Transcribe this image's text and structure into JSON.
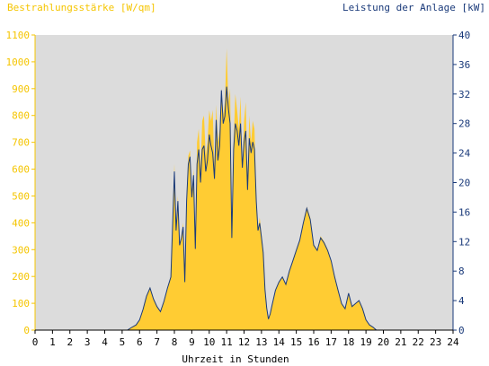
{
  "chart_data": {
    "type": "area",
    "title_left": "Bestrahlungsstärke [W/qm]",
    "title_right": "Leistung der Anlage [kW]",
    "xlabel": "Uhrzeit in Stunden",
    "x_ticks": [
      "0",
      "1",
      "2",
      "3",
      "4",
      "5",
      "6",
      "7",
      "8",
      "9",
      "10",
      "11",
      "12",
      "13",
      "14",
      "15",
      "16",
      "17",
      "18",
      "19",
      "20",
      "21",
      "22",
      "23",
      "24"
    ],
    "y_left_ticks": [
      "0",
      "100",
      "200",
      "300",
      "400",
      "500",
      "600",
      "700",
      "800",
      "900",
      "1000",
      "1100"
    ],
    "y_right_ticks": [
      "0",
      "4",
      "8",
      "12",
      "16",
      "20",
      "24",
      "28",
      "32",
      "36",
      "40"
    ],
    "xlim": [
      0,
      24
    ],
    "ylim_left": [
      0,
      1100
    ],
    "ylim_right": [
      0,
      40
    ],
    "grid": false,
    "colors": {
      "plot_background": "#dcdcdc",
      "irradiance_fill": "#ffcc33",
      "power_line": "#1a3a7a",
      "left_axis_text": "#f5c500",
      "right_axis_text": "#1a3a7a"
    },
    "series": [
      {
        "unit": "W/qm",
        "axis": "left",
        "style": "filled-area",
        "x": [
          5.3,
          5.5,
          5.8,
          6.0,
          6.2,
          6.4,
          6.6,
          6.8,
          7.0,
          7.2,
          7.4,
          7.6,
          7.8,
          8.0,
          8.1,
          8.2,
          8.3,
          8.4,
          8.5,
          8.6,
          8.7,
          8.8,
          8.9,
          9.0,
          9.1,
          9.2,
          9.3,
          9.4,
          9.5,
          9.6,
          9.7,
          9.8,
          9.9,
          10.0,
          10.1,
          10.2,
          10.3,
          10.4,
          10.5,
          10.6,
          10.7,
          10.8,
          10.9,
          11.0,
          11.1,
          11.2,
          11.3,
          11.4,
          11.5,
          11.6,
          11.7,
          11.8,
          11.9,
          12.0,
          12.1,
          12.2,
          12.3,
          12.4,
          12.5,
          12.6,
          12.7,
          12.8,
          12.9,
          13.0,
          13.1,
          13.2,
          13.3,
          13.4,
          13.5,
          13.6,
          13.8,
          14.0,
          14.2,
          14.4,
          14.6,
          14.8,
          15.0,
          15.2,
          15.4,
          15.6,
          15.8,
          16.0,
          16.2,
          16.4,
          16.6,
          16.8,
          17.0,
          17.2,
          17.4,
          17.6,
          17.8,
          18.0,
          18.2,
          18.4,
          18.6,
          18.8,
          19.0,
          19.2,
          19.4,
          19.6,
          19.8,
          20.0,
          20.2
        ],
        "values": [
          0,
          10,
          20,
          40,
          80,
          130,
          160,
          120,
          90,
          70,
          110,
          160,
          200,
          620,
          380,
          500,
          320,
          350,
          400,
          180,
          500,
          650,
          670,
          500,
          600,
          300,
          700,
          750,
          600,
          780,
          800,
          650,
          700,
          820,
          780,
          820,
          600,
          840,
          700,
          750,
          900,
          800,
          850,
          1050,
          850,
          900,
          380,
          700,
          880,
          820,
          750,
          870,
          600,
          780,
          850,
          560,
          800,
          700,
          780,
          750,
          500,
          380,
          420,
          360,
          300,
          150,
          80,
          40,
          60,
          90,
          150,
          180,
          200,
          170,
          220,
          260,
          300,
          340,
          400,
          460,
          420,
          320,
          300,
          350,
          330,
          300,
          260,
          200,
          150,
          100,
          80,
          140,
          90,
          100,
          110,
          80,
          40,
          20,
          10,
          0,
          0,
          0,
          0
        ],
        "name": ""
      },
      {
        "unit": "kW",
        "axis": "right",
        "style": "line",
        "x": [
          5.3,
          5.5,
          5.8,
          6.0,
          6.2,
          6.4,
          6.6,
          6.8,
          7.0,
          7.2,
          7.4,
          7.6,
          7.8,
          8.0,
          8.1,
          8.2,
          8.3,
          8.4,
          8.5,
          8.6,
          8.7,
          8.8,
          8.9,
          9.0,
          9.1,
          9.2,
          9.3,
          9.4,
          9.5,
          9.6,
          9.7,
          9.8,
          9.9,
          10.0,
          10.1,
          10.2,
          10.3,
          10.4,
          10.5,
          10.6,
          10.7,
          10.8,
          10.9,
          11.0,
          11.1,
          11.2,
          11.3,
          11.4,
          11.5,
          11.6,
          11.7,
          11.8,
          11.9,
          12.0,
          12.1,
          12.2,
          12.3,
          12.4,
          12.5,
          12.6,
          12.7,
          12.8,
          12.9,
          13.0,
          13.1,
          13.2,
          13.3,
          13.4,
          13.5,
          13.6,
          13.8,
          14.0,
          14.2,
          14.4,
          14.6,
          14.8,
          15.0,
          15.2,
          15.4,
          15.6,
          15.8,
          16.0,
          16.2,
          16.4,
          16.6,
          16.8,
          17.0,
          17.2,
          17.4,
          17.6,
          17.8,
          18.0,
          18.2,
          18.4,
          18.6,
          18.8,
          19.0,
          19.2,
          19.4,
          19.6,
          19.8,
          20.0,
          20.2
        ],
        "values": [
          0,
          0.3,
          0.7,
          1.4,
          2.8,
          4.6,
          5.7,
          4.2,
          3.2,
          2.5,
          3.9,
          5.7,
          7.2,
          21.5,
          13.5,
          17.5,
          11.5,
          12.5,
          14.0,
          6.5,
          17.5,
          22.5,
          23.5,
          18.0,
          21.0,
          11.0,
          22.5,
          24.5,
          20.0,
          24.5,
          25.0,
          21.5,
          23.0,
          26.5,
          25.0,
          24.0,
          20.5,
          28.5,
          23.0,
          25.0,
          32.5,
          28.0,
          29.0,
          33.0,
          30.0,
          28.0,
          12.5,
          24.5,
          28.0,
          27.0,
          25.0,
          28.0,
          22.0,
          25.5,
          27.0,
          19.0,
          26.0,
          24.0,
          25.5,
          24.5,
          17.5,
          13.5,
          14.5,
          12.5,
          10.5,
          5.5,
          3.0,
          1.5,
          2.2,
          3.3,
          5.4,
          6.5,
          7.2,
          6.2,
          8.0,
          9.4,
          10.8,
          12.2,
          14.5,
          16.5,
          15.0,
          11.5,
          10.8,
          12.5,
          11.8,
          10.8,
          9.4,
          7.2,
          5.4,
          3.6,
          2.9,
          5.0,
          3.2,
          3.6,
          4.0,
          2.9,
          1.4,
          0.7,
          0.4,
          0,
          0,
          0,
          0
        ],
        "name": ""
      }
    ]
  }
}
